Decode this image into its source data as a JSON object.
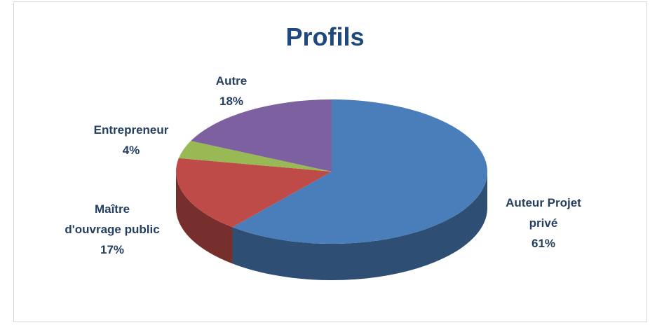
{
  "chart_data": {
    "type": "pie",
    "title": "Profils",
    "categories": [
      "Auteur Projet\nprivé",
      "Maître\nd'ouvrage public",
      "Entrepreneur",
      "Autre"
    ],
    "values": [
      61,
      17,
      4,
      18
    ],
    "value_labels": [
      "61%",
      "17%",
      "4%",
      "18%"
    ],
    "colors": [
      "#4a7ebb",
      "#be4b48",
      "#98b954",
      "#7d60a0"
    ]
  }
}
